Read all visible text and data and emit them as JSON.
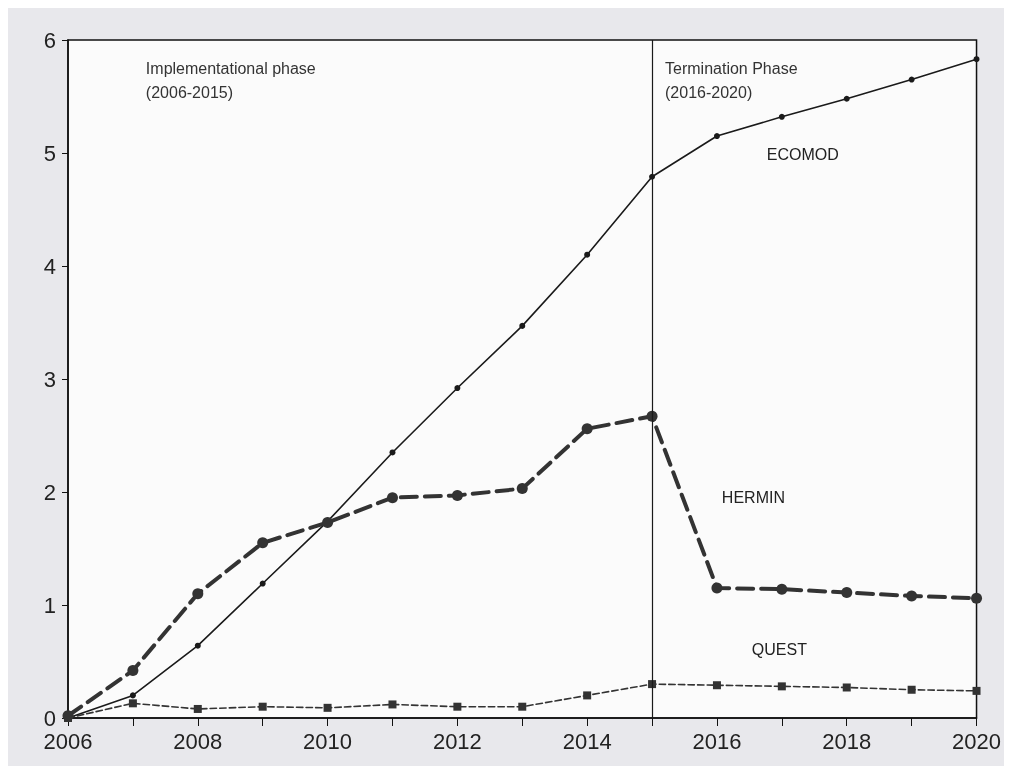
{
  "chart_data": {
    "type": "line",
    "x": [
      2006,
      2007,
      2008,
      2009,
      2010,
      2011,
      2012,
      2013,
      2014,
      2015,
      2016,
      2017,
      2018,
      2019,
      2020
    ],
    "series": [
      {
        "name": "ECOMOD",
        "color": "#1a1a1a",
        "line_style": "solid",
        "marker": "circle",
        "values": [
          0,
          0.2,
          0.64,
          1.19,
          1.74,
          2.35,
          2.92,
          3.47,
          4.1,
          4.79,
          5.15,
          5.32,
          5.48,
          5.65,
          5.83
        ]
      },
      {
        "name": "HERMIN",
        "color": "#333333",
        "line_style": "dashed",
        "marker": "circle",
        "values": [
          0.02,
          0.42,
          1.1,
          1.55,
          1.73,
          1.95,
          1.97,
          2.03,
          2.56,
          2.67,
          1.15,
          1.14,
          1.11,
          1.08,
          1.06
        ]
      },
      {
        "name": "QUEST",
        "color": "#333333",
        "line_style": "dashed",
        "marker": "square",
        "values": [
          0,
          0.13,
          0.08,
          0.1,
          0.09,
          0.12,
          0.1,
          0.1,
          0.2,
          0.3,
          0.29,
          0.28,
          0.27,
          0.25,
          0.24
        ]
      }
    ],
    "xlim": [
      2006,
      2020
    ],
    "xticks": [
      2006,
      {
        "value": 2007,
        "label": null
      },
      2008,
      {
        "value": 2009,
        "label": null
      },
      2010,
      {
        "value": 2011,
        "label": null
      },
      2012,
      {
        "value": 2013,
        "label": null
      },
      2014,
      {
        "value": 2015,
        "label": null
      },
      2016,
      {
        "value": 2017,
        "label": null
      },
      2018,
      {
        "value": 2019,
        "label": null
      },
      2020
    ],
    "ylim": [
      0,
      6
    ],
    "yticks": [
      0,
      1,
      2,
      3,
      4,
      5,
      6
    ],
    "grid": false,
    "legend": false,
    "ref_lines": [
      {
        "axis": "x",
        "value": 2015,
        "label": null,
        "color": "#1a1a1a"
      }
    ],
    "annotations": [
      "Implementational phase\n(2006-2015)",
      "Termination Phase\n(2016-2020)"
    ]
  }
}
